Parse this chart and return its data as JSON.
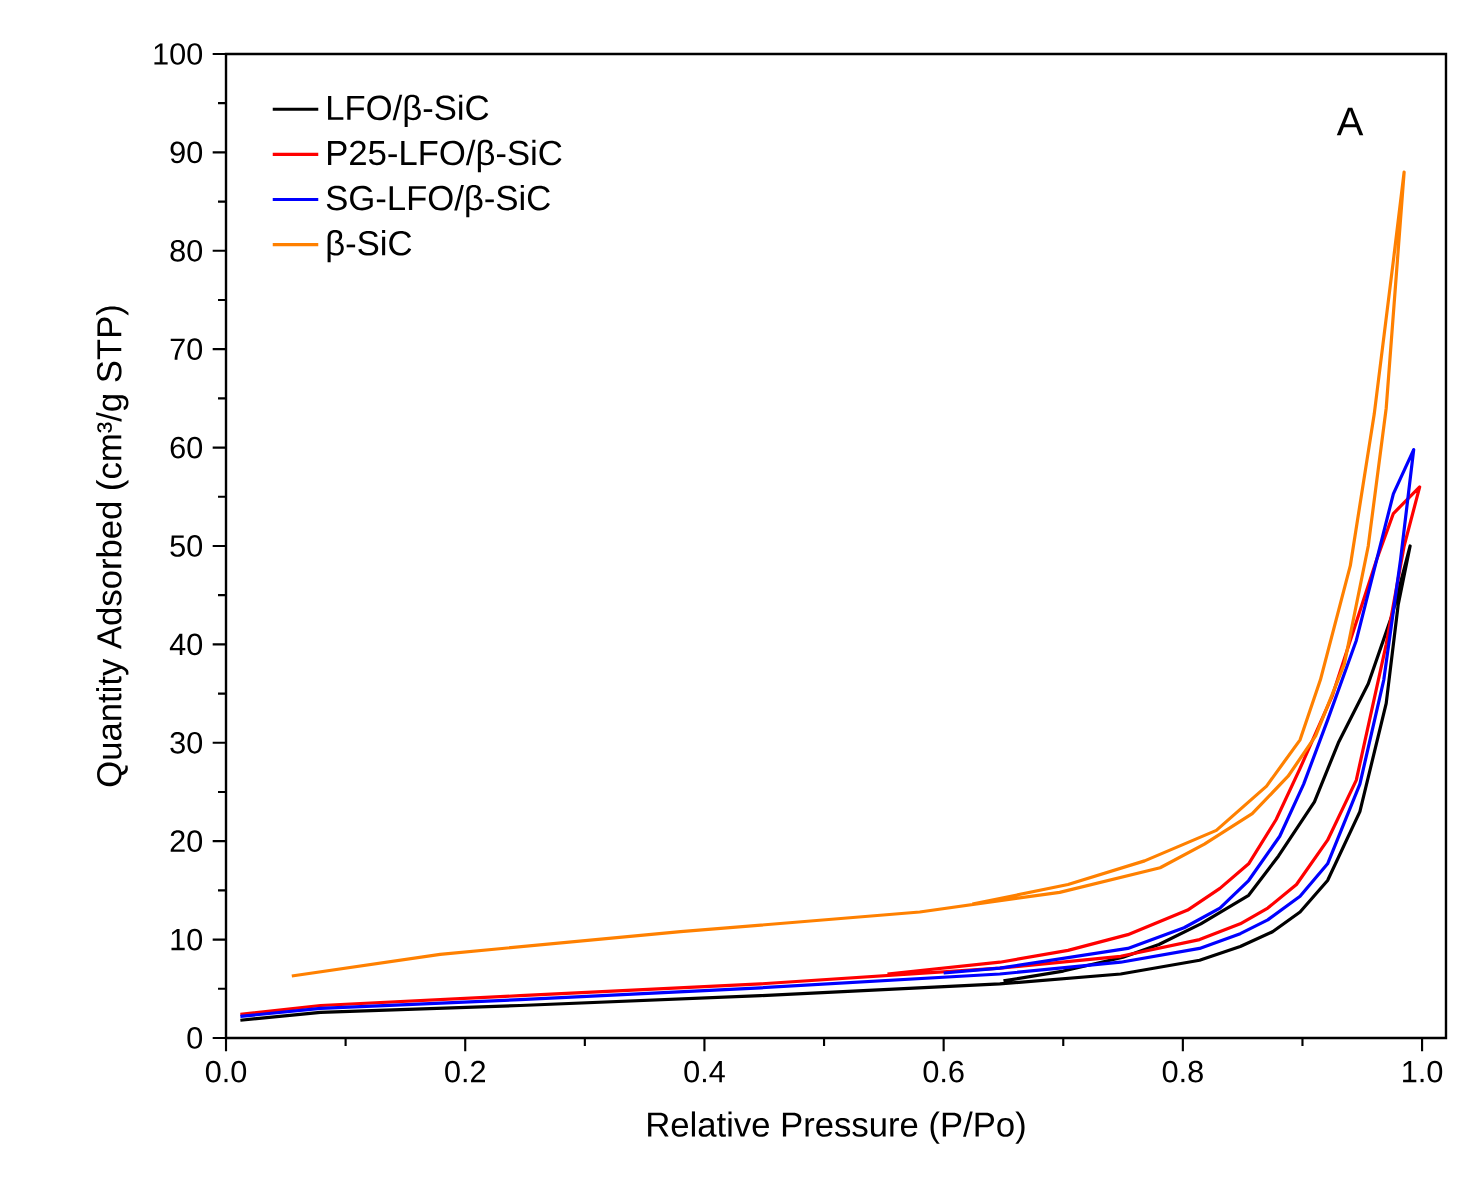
{
  "chart_data": {
    "type": "line",
    "xlabel": "Relative Pressure (P/Po)",
    "ylabel": "Quantity Adsorbed (cm³/g STP)",
    "annotations": [
      "A"
    ],
    "xlim": [
      0,
      1.02
    ],
    "ylim": [
      0,
      100
    ],
    "xticks": [
      {
        "value": 0,
        "label": "0.0"
      },
      {
        "value": 0.2,
        "label": "0.2"
      },
      {
        "value": 0.4,
        "label": "0.4"
      },
      {
        "value": 0.6,
        "label": "0.6"
      },
      {
        "value": 0.8,
        "label": "0.8"
      },
      {
        "value": 1,
        "label": "1.0"
      }
    ],
    "yticks": [
      0,
      10,
      20,
      30,
      40,
      50,
      60,
      70,
      80,
      90,
      100
    ],
    "legend": "top left",
    "grid": false,
    "marker": "none",
    "line_style": "solid",
    "series": [
      {
        "name": "LFO/β-SiC",
        "color": "#000000",
        "x": [
          0.012,
          0.079,
          0.246,
          0.447,
          0.647,
          0.748,
          0.814,
          0.848,
          0.875,
          0.898,
          0.921,
          0.948,
          0.97,
          0.98,
          0.99,
          0.975,
          0.955,
          0.93,
          0.91,
          0.88,
          0.855,
          0.815,
          0.78,
          0.75,
          0.7,
          0.65
        ],
        "values": [
          1.8,
          2.6,
          3.3,
          4.3,
          5.5,
          6.5,
          7.9,
          9.3,
          10.8,
          12.8,
          16,
          23,
          34,
          44,
          50,
          43,
          36,
          30,
          24,
          18.5,
          14.5,
          11.6,
          9.5,
          8.2,
          6.8,
          5.8
        ]
      },
      {
        "name": "P25-LFO/β-SiC",
        "color": "#ff0000",
        "x": [
          0.012,
          0.079,
          0.246,
          0.447,
          0.647,
          0.748,
          0.814,
          0.848,
          0.871,
          0.895,
          0.921,
          0.945,
          0.97,
          0.985,
          0.998,
          0.976,
          0.962,
          0.925,
          0.898,
          0.878,
          0.855,
          0.831,
          0.804,
          0.754,
          0.704,
          0.647,
          0.553
        ],
        "values": [
          2.4,
          3.3,
          4.3,
          5.5,
          7.1,
          8.3,
          10,
          11.6,
          13.2,
          15.6,
          20.1,
          26.2,
          40,
          50,
          56,
          53.3,
          48.6,
          34.8,
          27.4,
          22.2,
          17.7,
          15.2,
          13,
          10.5,
          8.9,
          7.7,
          6.5
        ]
      },
      {
        "name": "SG-LFO/β-SiC",
        "color": "#0000ff",
        "x": [
          0.012,
          0.079,
          0.246,
          0.447,
          0.647,
          0.748,
          0.814,
          0.848,
          0.871,
          0.898,
          0.921,
          0.948,
          0.968,
          0.982,
          0.993,
          0.976,
          0.945,
          0.921,
          0.901,
          0.881,
          0.855,
          0.831,
          0.801,
          0.754,
          0.647,
          0.6
        ],
        "values": [
          2.2,
          3,
          3.9,
          5.1,
          6.5,
          7.7,
          9.1,
          10.6,
          12,
          14.4,
          17.7,
          25.8,
          36.4,
          48.6,
          59.8,
          55.3,
          40.4,
          32.3,
          25.8,
          20.5,
          16,
          13.2,
          11.2,
          9.1,
          7.1,
          6.6
        ]
      },
      {
        "name": "β-SiC",
        "color": "#ff8000",
        "x": [
          0.055,
          0.179,
          0.38,
          0.58,
          0.697,
          0.781,
          0.818,
          0.858,
          0.888,
          0.911,
          0.935,
          0.955,
          0.97,
          0.985,
          0.976,
          0.96,
          0.94,
          0.915,
          0.898,
          0.87,
          0.828,
          0.768,
          0.704,
          0.624
        ],
        "values": [
          6.3,
          8.5,
          10.8,
          12.8,
          14.8,
          17.3,
          19.7,
          22.8,
          26.6,
          30.7,
          38,
          50,
          64,
          88,
          79,
          63.4,
          48,
          36.4,
          30.3,
          25.6,
          21.1,
          18,
          15.6,
          13.6
        ]
      }
    ]
  }
}
